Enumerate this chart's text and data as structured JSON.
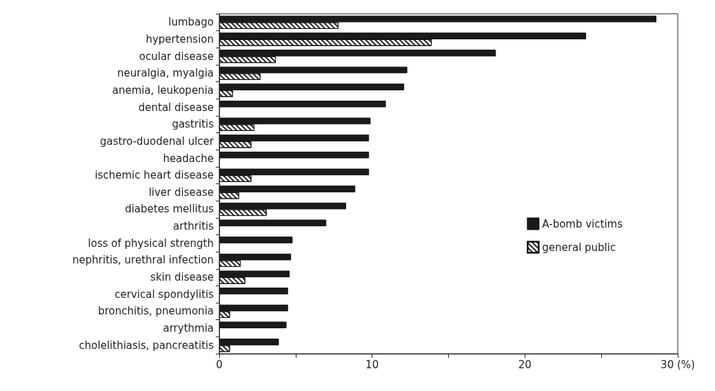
{
  "chart_data": {
    "type": "bar",
    "orientation": "horizontal",
    "categories": [
      "lumbago",
      "hypertension",
      "ocular disease",
      "neuralgia, myalgia",
      "anemia, leukopenia",
      "dental disease",
      "gastritis",
      "gastro-duodenal ulcer",
      "headache",
      "ischemic heart disease",
      "liver disease",
      "diabetes mellitus",
      "arthritis",
      "loss of physical strength",
      "nephritis, urethral infection",
      "skin disease",
      "cervical spondylitis",
      "bronchitis, pneumonia",
      "arrythmia",
      "cholelithiasis, pancreatitis"
    ],
    "series": [
      {
        "name": "A-bomb victims",
        "color": "#1a1a1a",
        "values": [
          28.6,
          24.0,
          18.1,
          12.3,
          12.1,
          10.9,
          9.9,
          9.8,
          9.8,
          9.8,
          8.9,
          8.3,
          7.0,
          4.8,
          4.7,
          4.6,
          4.5,
          4.5,
          4.4,
          3.9
        ]
      },
      {
        "name": "general public",
        "color": "#ffffff",
        "values": [
          7.8,
          13.9,
          3.7,
          2.7,
          0.9,
          null,
          2.3,
          2.1,
          null,
          2.1,
          1.3,
          3.1,
          null,
          null,
          1.4,
          1.7,
          null,
          0.7,
          null,
          0.7
        ]
      }
    ],
    "xlim": [
      0,
      30
    ],
    "xticks": [
      0,
      {
        "value": 5,
        "label": null
      },
      10,
      {
        "value": 15,
        "label": null
      },
      20,
      {
        "value": 25,
        "label": null
      },
      {
        "value": 30,
        "label": "30 (%)"
      }
    ],
    "grid": false,
    "legend": "right"
  }
}
